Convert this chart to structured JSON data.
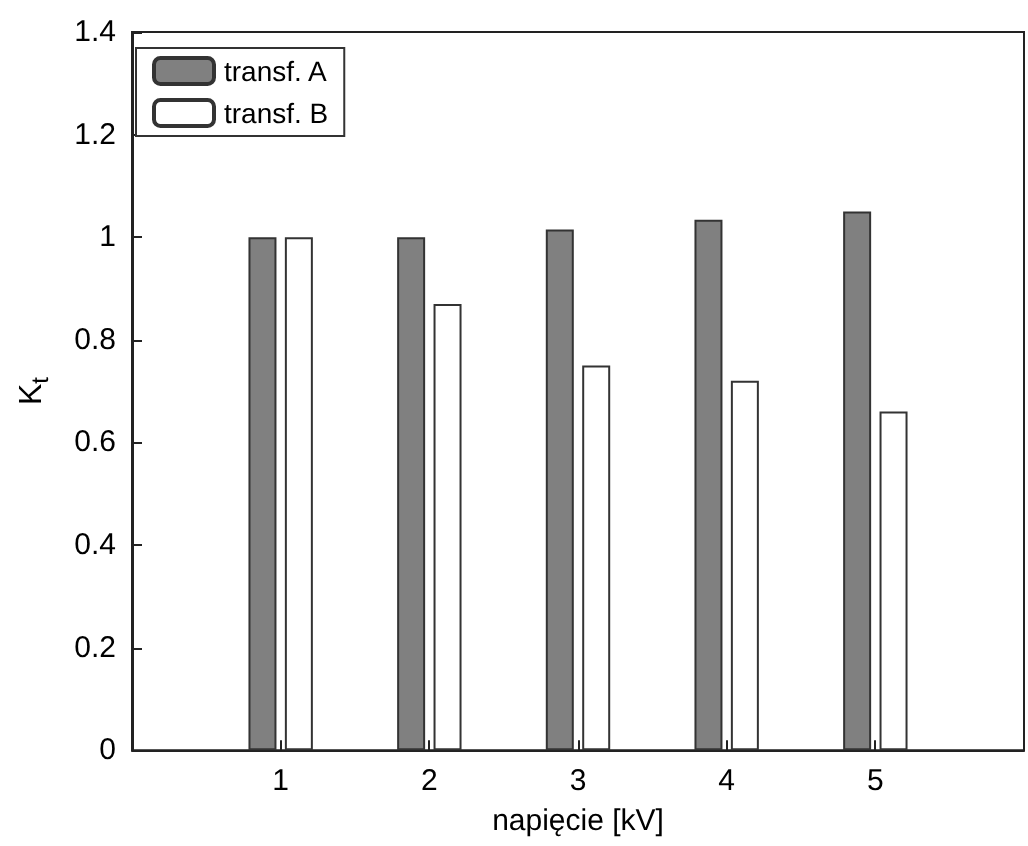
{
  "chart_data": {
    "type": "bar",
    "xlabel": "napięcie [kV]",
    "ylabel": "K$_{t}$",
    "x": [
      1,
      2,
      3,
      4,
      5
    ],
    "series": [
      {
        "name": "transf. A",
        "color": "#808080",
        "values": [
          1.0,
          1.0,
          1.015,
          1.034,
          1.05
        ]
      },
      {
        "name": "transf. B",
        "color": "#ffffff",
        "values": [
          1.0,
          0.87,
          0.75,
          0.72,
          0.66
        ]
      }
    ],
    "xlim": [
      0,
      6
    ],
    "xticks": [
      1,
      2,
      3,
      4,
      5
    ],
    "ylim": [
      0,
      1.4
    ],
    "yticks": [
      0,
      0.2,
      0.4,
      0.6,
      0.8,
      1,
      1.2,
      1.4
    ],
    "grid": false,
    "legend": "top left"
  }
}
